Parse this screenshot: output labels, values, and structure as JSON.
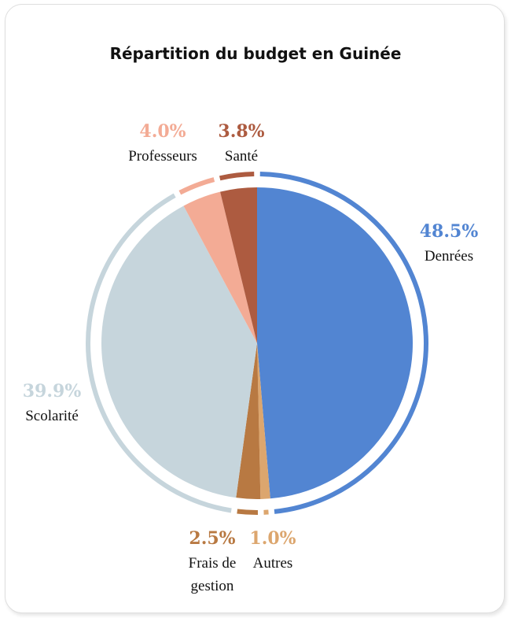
{
  "chart_data": {
    "type": "pie",
    "title": "Répartition du budget en Guinée",
    "slices": [
      {
        "label": "Denrées",
        "value": 48.5,
        "pct_label": "48.5%",
        "color": "#5285d2"
      },
      {
        "label": "Autres",
        "value": 1.0,
        "pct_label": "1.0%",
        "color": "#dca66e"
      },
      {
        "label": "Frais de gestion",
        "value": 2.5,
        "pct_label": "2.5%",
        "color": "#b87942"
      },
      {
        "label": "Scolarité",
        "value": 39.9,
        "pct_label": "39.9%",
        "color": "#c6d5dc"
      },
      {
        "label": "Professeurs",
        "value": 4.0,
        "pct_label": "4.0%",
        "color": "#f3ab95"
      },
      {
        "label": "Santé",
        "value": 3.8,
        "pct_label": "3.8%",
        "color": "#ad5b40"
      }
    ]
  }
}
